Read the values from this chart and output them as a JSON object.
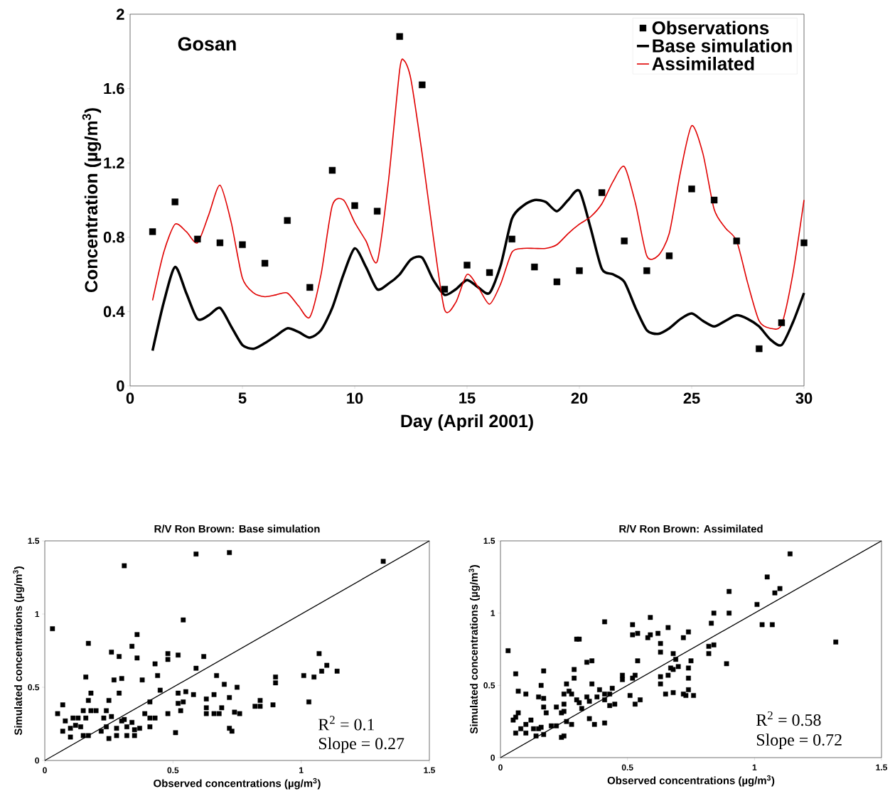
{
  "chart_data": [
    {
      "type": "line",
      "xlabel": "Day (April 2001)",
      "ylabel": "Concentration (µg/m$^{3}$)",
      "annotations": [
        "Gosan"
      ],
      "xlim": [
        0,
        30
      ],
      "xticks": [
        0,
        5,
        10,
        15,
        20,
        25,
        30
      ],
      "ylim": [
        0,
        2
      ],
      "yticks": [
        0,
        0.4,
        0.8,
        1.2,
        1.6,
        2
      ],
      "legend": "top right",
      "series": [
        {
          "name": "Observations",
          "type": "scatter",
          "marker": "square",
          "color": "#000000",
          "x": [
            1,
            2,
            3,
            4,
            5,
            6,
            7,
            8,
            9,
            10,
            11,
            12,
            13,
            14,
            15,
            16,
            17,
            18,
            19,
            20,
            21,
            22,
            23,
            24,
            25,
            26,
            27,
            28,
            29,
            30
          ],
          "values": [
            0.83,
            0.99,
            0.79,
            0.77,
            0.76,
            0.66,
            0.89,
            0.53,
            1.16,
            0.97,
            0.94,
            1.88,
            1.62,
            0.52,
            0.65,
            0.61,
            0.79,
            0.64,
            0.56,
            0.62,
            1.04,
            0.78,
            0.62,
            0.7,
            1.06,
            1.0,
            0.78,
            0.2,
            0.34,
            0.77
          ]
        },
        {
          "name": "Base simulation",
          "color": "#000000",
          "x": [
            1,
            1.5,
            2,
            2.5,
            3,
            3.5,
            4,
            4.5,
            5,
            5.5,
            6,
            6.5,
            7,
            7.5,
            8,
            8.5,
            9,
            9.5,
            10,
            10.5,
            11,
            11.5,
            12,
            12.5,
            13,
            13.5,
            14,
            14.5,
            15,
            15.5,
            16,
            16.5,
            17,
            17.5,
            18,
            18.5,
            19,
            19.5,
            20,
            20.5,
            21,
            21.5,
            22,
            22.5,
            23,
            23.5,
            24,
            24.5,
            25,
            25.5,
            26,
            26.5,
            27,
            27.5,
            28,
            28.5,
            29,
            29.5,
            30
          ],
          "values": [
            0.19,
            0.45,
            0.64,
            0.5,
            0.36,
            0.38,
            0.42,
            0.32,
            0.22,
            0.2,
            0.23,
            0.27,
            0.31,
            0.29,
            0.26,
            0.3,
            0.42,
            0.6,
            0.74,
            0.64,
            0.52,
            0.55,
            0.6,
            0.68,
            0.69,
            0.57,
            0.49,
            0.52,
            0.57,
            0.53,
            0.5,
            0.65,
            0.9,
            0.97,
            1.0,
            0.99,
            0.94,
            1.0,
            1.05,
            0.85,
            0.63,
            0.6,
            0.56,
            0.42,
            0.3,
            0.28,
            0.31,
            0.36,
            0.39,
            0.35,
            0.32,
            0.35,
            0.38,
            0.36,
            0.32,
            0.25,
            0.22,
            0.34,
            0.5
          ]
        },
        {
          "name": "Assimilated",
          "color": "#e00000",
          "x": [
            1,
            1.5,
            2,
            2.5,
            3,
            3.5,
            4,
            4.5,
            5,
            5.5,
            6,
            6.5,
            7,
            7.5,
            8,
            8.5,
            9,
            9.5,
            10,
            10.5,
            11,
            11.5,
            12,
            12.2,
            12.5,
            13,
            13.5,
            14,
            14.5,
            15,
            15.5,
            16,
            16.5,
            17,
            17.5,
            18,
            18.5,
            19,
            19.5,
            20,
            20.5,
            21,
            21.5,
            22,
            22.5,
            23,
            23.5,
            24,
            24.5,
            25,
            25.5,
            26,
            26.5,
            27,
            27.5,
            28,
            28.5,
            29,
            29.5,
            30
          ],
          "values": [
            0.46,
            0.72,
            0.87,
            0.83,
            0.77,
            0.92,
            1.08,
            0.88,
            0.58,
            0.5,
            0.48,
            0.49,
            0.5,
            0.43,
            0.37,
            0.6,
            0.97,
            1.0,
            0.88,
            0.78,
            0.67,
            1.1,
            1.7,
            1.75,
            1.65,
            1.25,
            0.8,
            0.41,
            0.45,
            0.6,
            0.53,
            0.44,
            0.55,
            0.72,
            0.74,
            0.74,
            0.74,
            0.76,
            0.82,
            0.87,
            0.91,
            0.98,
            1.1,
            1.18,
            0.98,
            0.7,
            0.7,
            0.82,
            1.15,
            1.4,
            1.25,
            0.95,
            0.85,
            0.78,
            0.55,
            0.35,
            0.31,
            0.33,
            0.6,
            1.0
          ]
        }
      ]
    },
    {
      "type": "scatter",
      "title": "R/V Ron Brown: Base simulation",
      "xlabel": "Observed concentrations (µg/m$^{3}$)",
      "ylabel": "Simulated concentrations (µg/m$^{3}$)",
      "annotations": [
        "R$^{2}$ = 0.1",
        "Slope = 0.27"
      ],
      "xlim": [
        0,
        1.5
      ],
      "xticks": [
        0,
        0.5,
        1,
        1.5
      ],
      "ylim": [
        0,
        1.5
      ],
      "yticks": [
        0,
        0.5,
        1,
        1.5
      ],
      "series": [
        {
          "marker": "square",
          "color": "#000000",
          "x": [
            0.03,
            0.31,
            0.59,
            0.72,
            0.54,
            0.36,
            0.17,
            0.34,
            0.26,
            0.29,
            0.36,
            0.48,
            0.48,
            0.52,
            0.62,
            0.43,
            0.59,
            0.16,
            0.27,
            0.3,
            0.38,
            0.44,
            0.67,
            0.7,
            0.75,
            0.18,
            0.29,
            0.45,
            0.52,
            0.55,
            0.58,
            0.66,
            0.17,
            0.25,
            0.41,
            0.52,
            0.54,
            0.63,
            0.72,
            0.07,
            0.05,
            0.08,
            0.11,
            0.13,
            0.15,
            0.16,
            0.18,
            0.2,
            0.23,
            0.24,
            0.26,
            0.3,
            0.31,
            0.34,
            0.39,
            0.41,
            0.43,
            0.48,
            0.53,
            0.63,
            0.63,
            0.66,
            0.68,
            0.69,
            0.74,
            0.07,
            0.1,
            0.1,
            0.12,
            0.14,
            0.15,
            0.17,
            0.22,
            0.24,
            0.25,
            0.28,
            0.28,
            0.32,
            0.32,
            0.35,
            0.35,
            0.37,
            0.41,
            0.51,
            0.72,
            0.73,
            1.32,
            1.07,
            1.1,
            1.08,
            1.14,
            1.01,
            1.05,
            0.9,
            0.9,
            1.03,
            0.89,
            0.84,
            0.82,
            0.84,
            0.76
          ],
          "values": [
            0.9,
            1.33,
            1.41,
            1.42,
            0.96,
            0.86,
            0.8,
            0.78,
            0.74,
            0.71,
            0.7,
            0.73,
            0.69,
            0.72,
            0.71,
            0.66,
            0.63,
            0.57,
            0.55,
            0.56,
            0.55,
            0.58,
            0.58,
            0.52,
            0.5,
            0.46,
            0.46,
            0.48,
            0.46,
            0.47,
            0.45,
            0.45,
            0.41,
            0.41,
            0.4,
            0.39,
            0.4,
            0.42,
            0.43,
            0.38,
            0.32,
            0.27,
            0.29,
            0.29,
            0.34,
            0.29,
            0.34,
            0.34,
            0.29,
            0.34,
            0.3,
            0.27,
            0.28,
            0.26,
            0.32,
            0.29,
            0.29,
            0.32,
            0.34,
            0.32,
            0.36,
            0.32,
            0.32,
            0.36,
            0.33,
            0.2,
            0.16,
            0.22,
            0.24,
            0.23,
            0.17,
            0.17,
            0.2,
            0.23,
            0.15,
            0.22,
            0.17,
            0.23,
            0.17,
            0.21,
            0.17,
            0.22,
            0.23,
            0.19,
            0.22,
            0.2,
            1.36,
            0.73,
            0.65,
            0.61,
            0.61,
            0.58,
            0.57,
            0.57,
            0.53,
            0.4,
            0.38,
            0.41,
            0.37,
            0.37,
            0.32
          ]
        },
        {
          "type": "line",
          "color": "#000000",
          "x": [
            0,
            1.5
          ],
          "values": [
            0,
            1.5
          ]
        }
      ]
    },
    {
      "type": "scatter",
      "title": "R/V Ron Brown: Assimilated",
      "xlabel": "Observed concentrations (µg/m$^{3}$)",
      "ylabel": "Simulated concentrations (µg/m$^{3}$)",
      "annotations": [
        "R$^{2}$ = 0.58",
        "Slope = 0.72"
      ],
      "xlim": [
        0,
        1.5
      ],
      "xticks": [
        0,
        0.5,
        1,
        1.5
      ],
      "ylim": [
        0,
        1.5
      ],
      "yticks": [
        0,
        0.5,
        1,
        1.5
      ],
      "series": [
        {
          "marker": "square",
          "color": "#000000",
          "x": [
            0.03,
            0.41,
            0.59,
            0.52,
            0.52,
            0.54,
            0.58,
            0.59,
            0.62,
            0.66,
            0.72,
            0.74,
            0.63,
            0.63,
            0.68,
            0.69,
            0.67,
            0.68,
            0.7,
            0.74,
            0.66,
            0.63,
            0.63,
            0.74,
            0.54,
            0.3,
            0.31,
            0.34,
            0.36,
            0.29,
            0.29,
            0.48,
            0.48,
            0.52,
            0.53,
            0.06,
            0.17,
            0.16,
            0.26,
            0.27,
            0.36,
            0.39,
            0.44,
            0.07,
            0.1,
            0.15,
            0.17,
            0.17,
            0.18,
            0.25,
            0.28,
            0.3,
            0.31,
            0.32,
            0.34,
            0.35,
            0.38,
            0.41,
            0.41,
            0.43,
            0.43,
            0.45,
            0.51,
            0.53,
            0.55,
            0.65,
            0.68,
            0.72,
            0.73,
            0.22,
            0.25,
            0.25,
            0.24,
            0.26,
            0.28,
            0.35,
            0.37,
            0.41,
            0.05,
            0.06,
            0.07,
            0.06,
            0.08,
            0.1,
            0.12,
            0.1,
            0.13,
            0.15,
            0.16,
            0.14,
            0.17,
            0.2,
            0.22,
            0.24,
            0.25,
            1.14,
            1.05,
            1.1,
            1.08,
            0.9,
            1.01,
            0.84,
            0.9,
            0.83,
            1.03,
            1.07,
            1.32,
            0.82,
            0.84,
            0.82,
            0.75,
            0.89,
            0.74,
            0.76
          ],
          "values": [
            0.74,
            0.94,
            0.97,
            0.92,
            0.85,
            0.86,
            0.83,
            0.85,
            0.86,
            0.9,
            0.83,
            0.87,
            0.79,
            0.73,
            0.72,
            0.68,
            0.62,
            0.61,
            0.63,
            0.62,
            0.57,
            0.56,
            0.51,
            0.55,
            0.67,
            0.82,
            0.82,
            0.66,
            0.67,
            0.61,
            0.55,
            0.57,
            0.54,
            0.55,
            0.57,
            0.58,
            0.6,
            0.5,
            0.51,
            0.46,
            0.51,
            0.47,
            0.48,
            0.46,
            0.44,
            0.42,
            0.41,
            0.35,
            0.31,
            0.44,
            0.44,
            0.4,
            0.38,
            0.34,
            0.42,
            0.39,
            0.42,
            0.44,
            0.4,
            0.44,
            0.36,
            0.37,
            0.43,
            0.37,
            0.4,
            0.44,
            0.45,
            0.44,
            0.43,
            0.35,
            0.37,
            0.32,
            0.31,
            0.25,
            0.23,
            0.27,
            0.23,
            0.24,
            0.26,
            0.28,
            0.31,
            0.17,
            0.2,
            0.23,
            0.26,
            0.17,
            0.2,
            0.2,
            0.21,
            0.15,
            0.16,
            0.22,
            0.22,
            0.14,
            0.15,
            1.41,
            1.25,
            1.17,
            1.14,
            1.15,
            1.06,
            1.0,
            1.0,
            0.93,
            0.92,
            0.92,
            0.8,
            0.77,
            0.78,
            0.72,
            0.67,
            0.65,
            0.47,
            0.43
          ]
        },
        {
          "type": "line",
          "color": "#000000",
          "x": [
            0,
            1.5
          ],
          "values": [
            0,
            1.5
          ]
        }
      ]
    }
  ]
}
